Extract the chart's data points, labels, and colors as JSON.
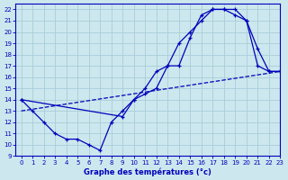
{
  "title": "Graphe des températures (°c)",
  "xlim": [
    -0.5,
    23
  ],
  "ylim": [
    9,
    22.5
  ],
  "xticks": [
    0,
    1,
    2,
    3,
    4,
    5,
    6,
    7,
    8,
    9,
    10,
    11,
    12,
    13,
    14,
    15,
    16,
    17,
    18,
    19,
    20,
    21,
    22,
    23
  ],
  "yticks": [
    9,
    10,
    11,
    12,
    13,
    14,
    15,
    16,
    17,
    18,
    19,
    20,
    21,
    22
  ],
  "background_color": "#cce8ee",
  "grid_color": "#aaccd8",
  "line_color": "#0000bb",
  "line1_x": [
    0,
    1,
    2,
    3,
    4,
    5,
    6,
    7,
    8,
    9,
    10,
    11,
    12,
    13,
    14,
    15,
    16,
    17,
    18,
    19,
    20,
    21,
    22,
    23
  ],
  "line1_y": [
    14,
    13,
    12,
    11,
    10.5,
    10.5,
    10,
    9.5,
    12,
    13,
    14,
    14.5,
    15,
    17,
    17,
    19.5,
    21.5,
    22,
    22,
    22,
    21,
    17,
    16.5,
    16.5
  ],
  "line2_x": [
    0,
    9,
    10,
    11,
    12,
    13,
    14,
    15,
    16,
    17,
    18,
    19,
    20,
    21,
    22,
    23
  ],
  "line2_y": [
    14,
    12.5,
    14,
    15,
    16.5,
    17,
    19,
    20,
    21,
    22,
    22,
    21.5,
    21,
    18.5,
    16.5,
    16.5
  ],
  "line3_x": [
    0,
    23
  ],
  "line3_y": [
    13,
    16.5
  ]
}
